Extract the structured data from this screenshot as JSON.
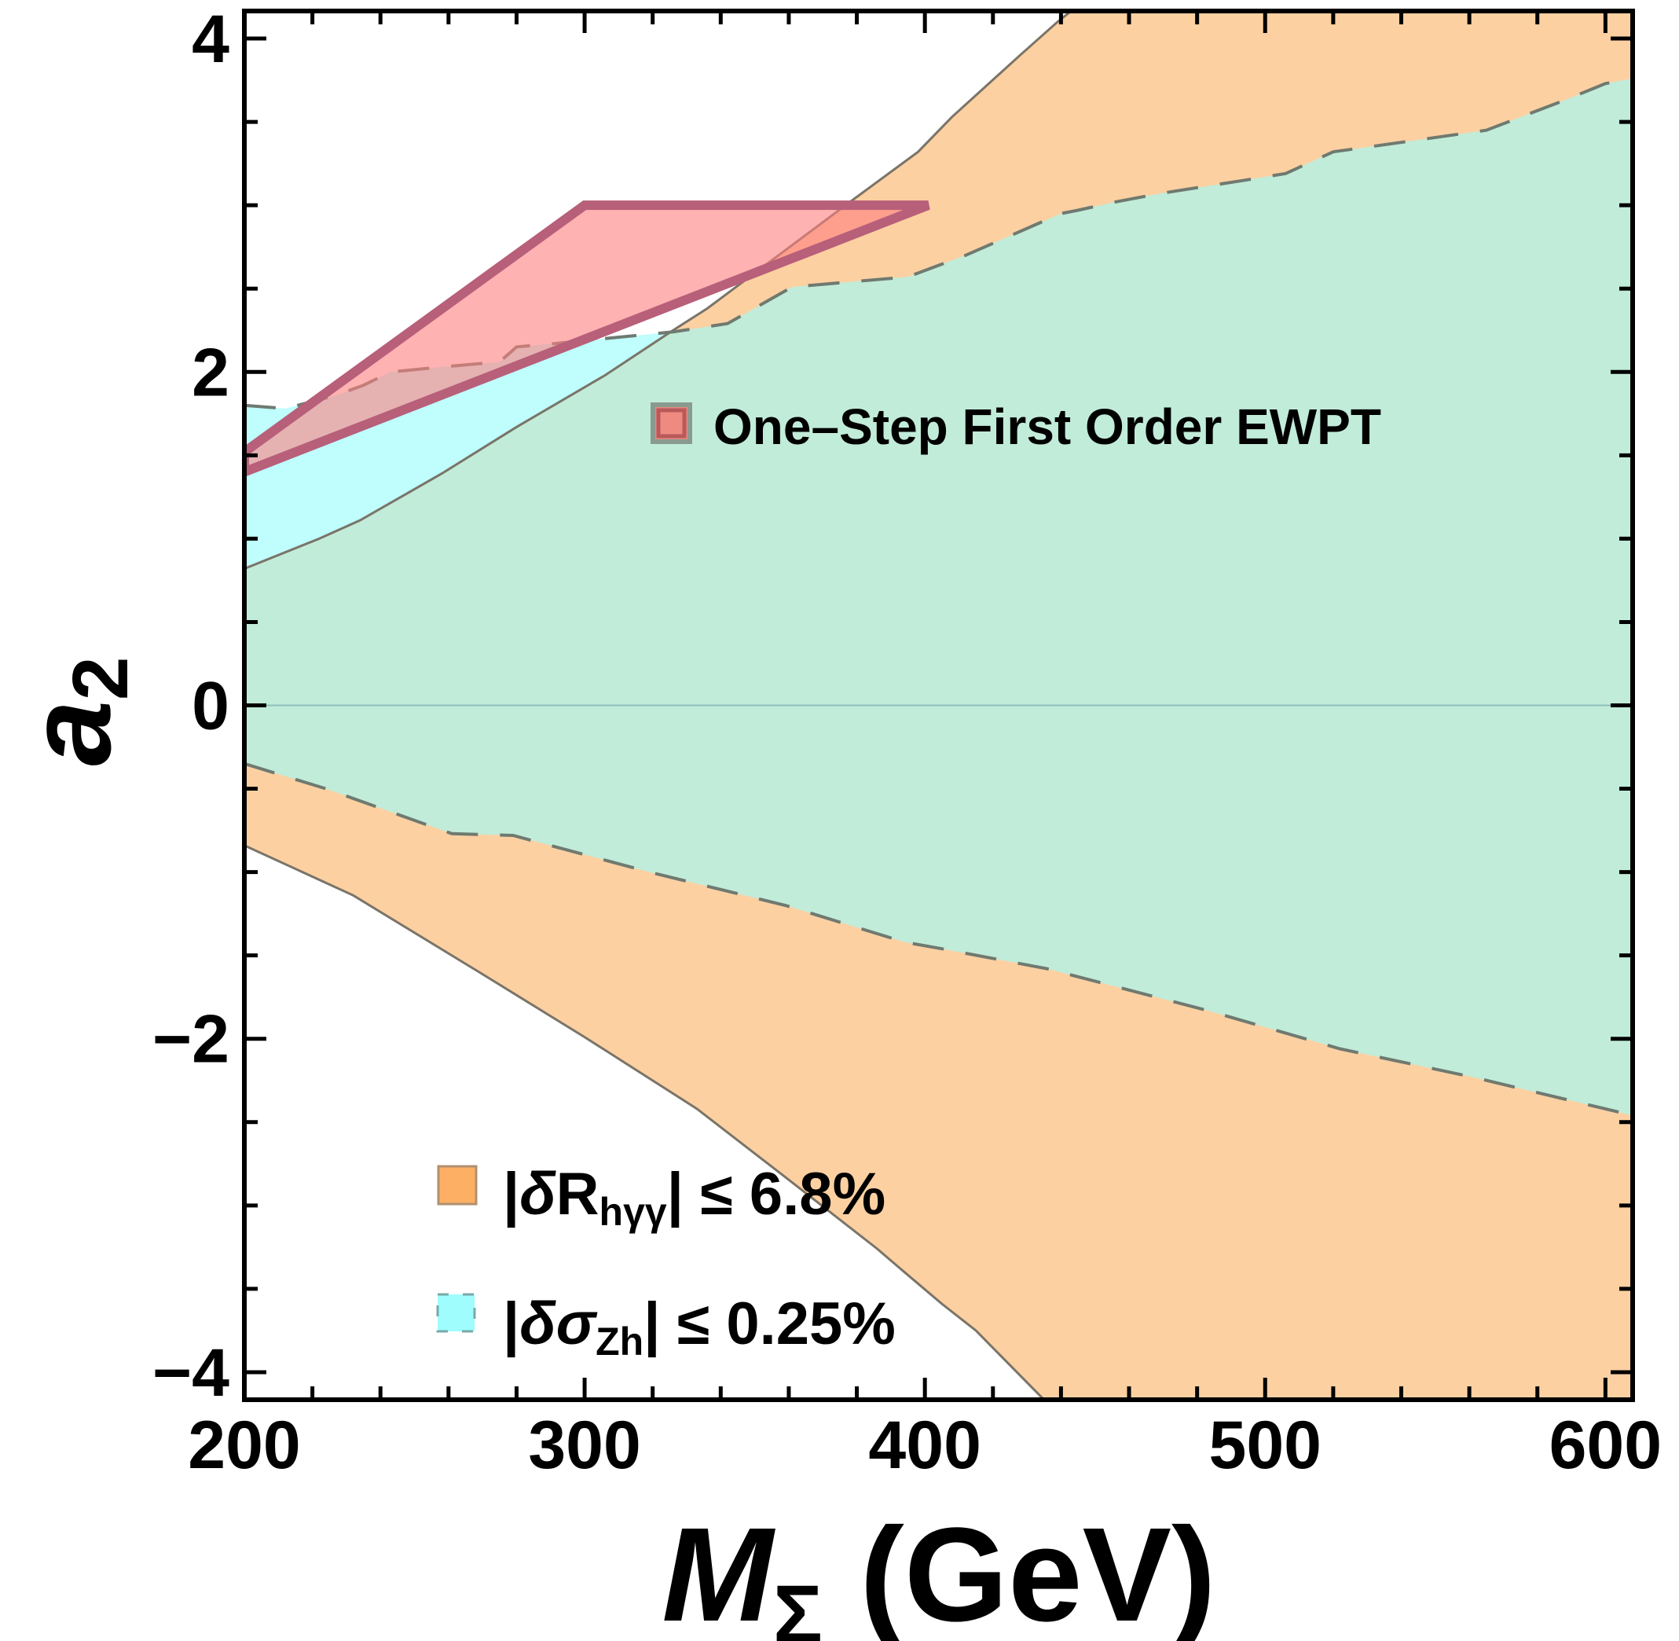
{
  "chart_data": {
    "type": "area",
    "title": "",
    "xlabel": {
      "main": "M",
      "sub": "Σ",
      "unit": " (GeV)"
    },
    "ylabel": {
      "main": "a",
      "sub": "2"
    },
    "xlim": [
      200,
      608
    ],
    "ylim": [
      -4.165,
      4.165
    ],
    "x_ticks": [
      200,
      300,
      400,
      500,
      600
    ],
    "x_tick_labels": [
      "200",
      "300",
      "400",
      "500",
      "600"
    ],
    "y_ticks": [
      -4,
      -2,
      0,
      2,
      4
    ],
    "y_tick_labels": [
      "−4",
      "−2",
      "0",
      "2",
      "4"
    ],
    "x_minor_step": 20,
    "y_minor_step": 0.5,
    "grid": false,
    "zero_line": true,
    "regions": [
      {
        "name": "delta-R-hgammagamma",
        "legend": {
          "prefix": "|",
          "delta": "δ",
          "sym": "R",
          "sub": "hγγ",
          "suffix": "| ≤ 6.8%"
        },
        "color": "#fdd0a2",
        "legend_color": "#fdb063",
        "line_style": "solid",
        "upper": [
          [
            200,
            0.82
          ],
          [
            222,
            1.0
          ],
          [
            234,
            1.11
          ],
          [
            258,
            1.39
          ],
          [
            280,
            1.67
          ],
          [
            306,
            1.98
          ],
          [
            326,
            2.25
          ],
          [
            336,
            2.38
          ],
          [
            357,
            2.7
          ],
          [
            378,
            3.02
          ],
          [
            398,
            3.32
          ],
          [
            408,
            3.53
          ],
          [
            428,
            3.9
          ],
          [
            439,
            4.1
          ],
          [
            443,
            4.165
          ]
        ],
        "lower": [
          [
            200,
            -0.84
          ],
          [
            232,
            -1.14
          ],
          [
            269,
            -1.6
          ],
          [
            300,
            -1.99
          ],
          [
            333,
            -2.42
          ],
          [
            359,
            -2.83
          ],
          [
            386,
            -3.26
          ],
          [
            394,
            -3.4
          ],
          [
            405,
            -3.59
          ],
          [
            415,
            -3.75
          ],
          [
            435,
            -4.165
          ]
        ]
      },
      {
        "name": "delta-sigma-Zh",
        "legend": {
          "prefix": "|",
          "delta": "δ",
          "sym": "σ",
          "sub": "Zh",
          "suffix": "| ≤ 0.25%"
        },
        "color": "#bffefd",
        "legend_color": "#9ffdfd",
        "overlap_color": "#c1ecd9",
        "line_style": "dashed",
        "upper": [
          [
            200,
            1.8
          ],
          [
            212,
            1.78
          ],
          [
            227,
            1.86
          ],
          [
            235,
            1.92
          ],
          [
            243,
            2.0
          ],
          [
            258,
            2.03
          ],
          [
            275,
            2.06
          ],
          [
            280,
            2.15
          ],
          [
            291,
            2.17
          ],
          [
            306,
            2.2
          ],
          [
            326,
            2.24
          ],
          [
            342,
            2.29
          ],
          [
            361,
            2.51
          ],
          [
            395,
            2.57
          ],
          [
            412,
            2.7
          ],
          [
            440,
            2.95
          ],
          [
            445,
            2.97
          ],
          [
            456,
            3.02
          ],
          [
            469,
            3.07
          ],
          [
            494,
            3.15
          ],
          [
            506,
            3.19
          ],
          [
            520,
            3.32
          ],
          [
            541,
            3.38
          ],
          [
            565,
            3.45
          ],
          [
            588,
            3.63
          ],
          [
            600,
            3.73
          ],
          [
            608,
            3.76
          ]
        ],
        "lower": [
          [
            200,
            -0.35
          ],
          [
            224,
            -0.5
          ],
          [
            261,
            -0.77
          ],
          [
            279,
            -0.78
          ],
          [
            319,
            -1.0
          ],
          [
            359,
            -1.2
          ],
          [
            394,
            -1.42
          ],
          [
            405,
            -1.46
          ],
          [
            436,
            -1.58
          ],
          [
            483,
            -1.83
          ],
          [
            522,
            -2.06
          ],
          [
            561,
            -2.23
          ],
          [
            604,
            -2.44
          ],
          [
            608,
            -2.46
          ]
        ]
      },
      {
        "name": "one-step-first-order-ewpt",
        "legend": {
          "text": "One–Step First Order EWPT"
        },
        "color": "#ff7f7f",
        "edge_color": "#b85f7a",
        "polygon": [
          [
            200,
            1.52
          ],
          [
            300,
            3.0
          ],
          [
            401,
            3.0
          ],
          [
            200,
            1.4
          ]
        ]
      }
    ]
  }
}
